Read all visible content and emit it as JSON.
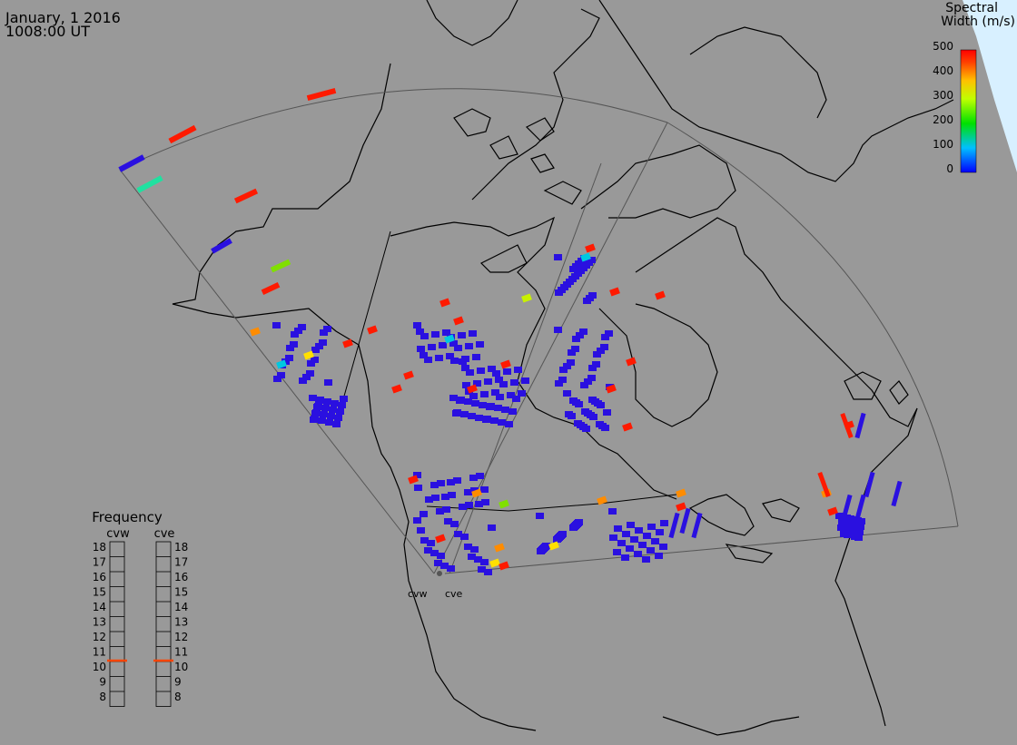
{
  "header": {
    "date": "January, 1 2016",
    "time": "1008:00 UT"
  },
  "colorbar": {
    "title_line1": "Spectral",
    "title_line2": "Width (m/s)",
    "ticks": [
      "500",
      "400",
      "300",
      "200",
      "100",
      "0"
    ],
    "range": [
      0,
      500
    ]
  },
  "frequency_panel": {
    "title": "Frequency",
    "radars": [
      {
        "name": "cvw",
        "selected": "11"
      },
      {
        "name": "cve",
        "selected": "11"
      }
    ],
    "levels": [
      "18",
      "17",
      "16",
      "15",
      "14",
      "13",
      "12",
      "11",
      "10",
      "9",
      "8"
    ],
    "marker_color": "#ff4400"
  },
  "radar_sites": [
    {
      "name": "cvw"
    },
    {
      "name": "cve"
    }
  ],
  "colors": {
    "background": "#999999",
    "land": "#999999",
    "ocean_highlight": "#d8f0ff",
    "coast": "#000000",
    "fov": "#555555",
    "scatter_low": "#2a10e0",
    "scatter_high": "#ff1a00"
  }
}
